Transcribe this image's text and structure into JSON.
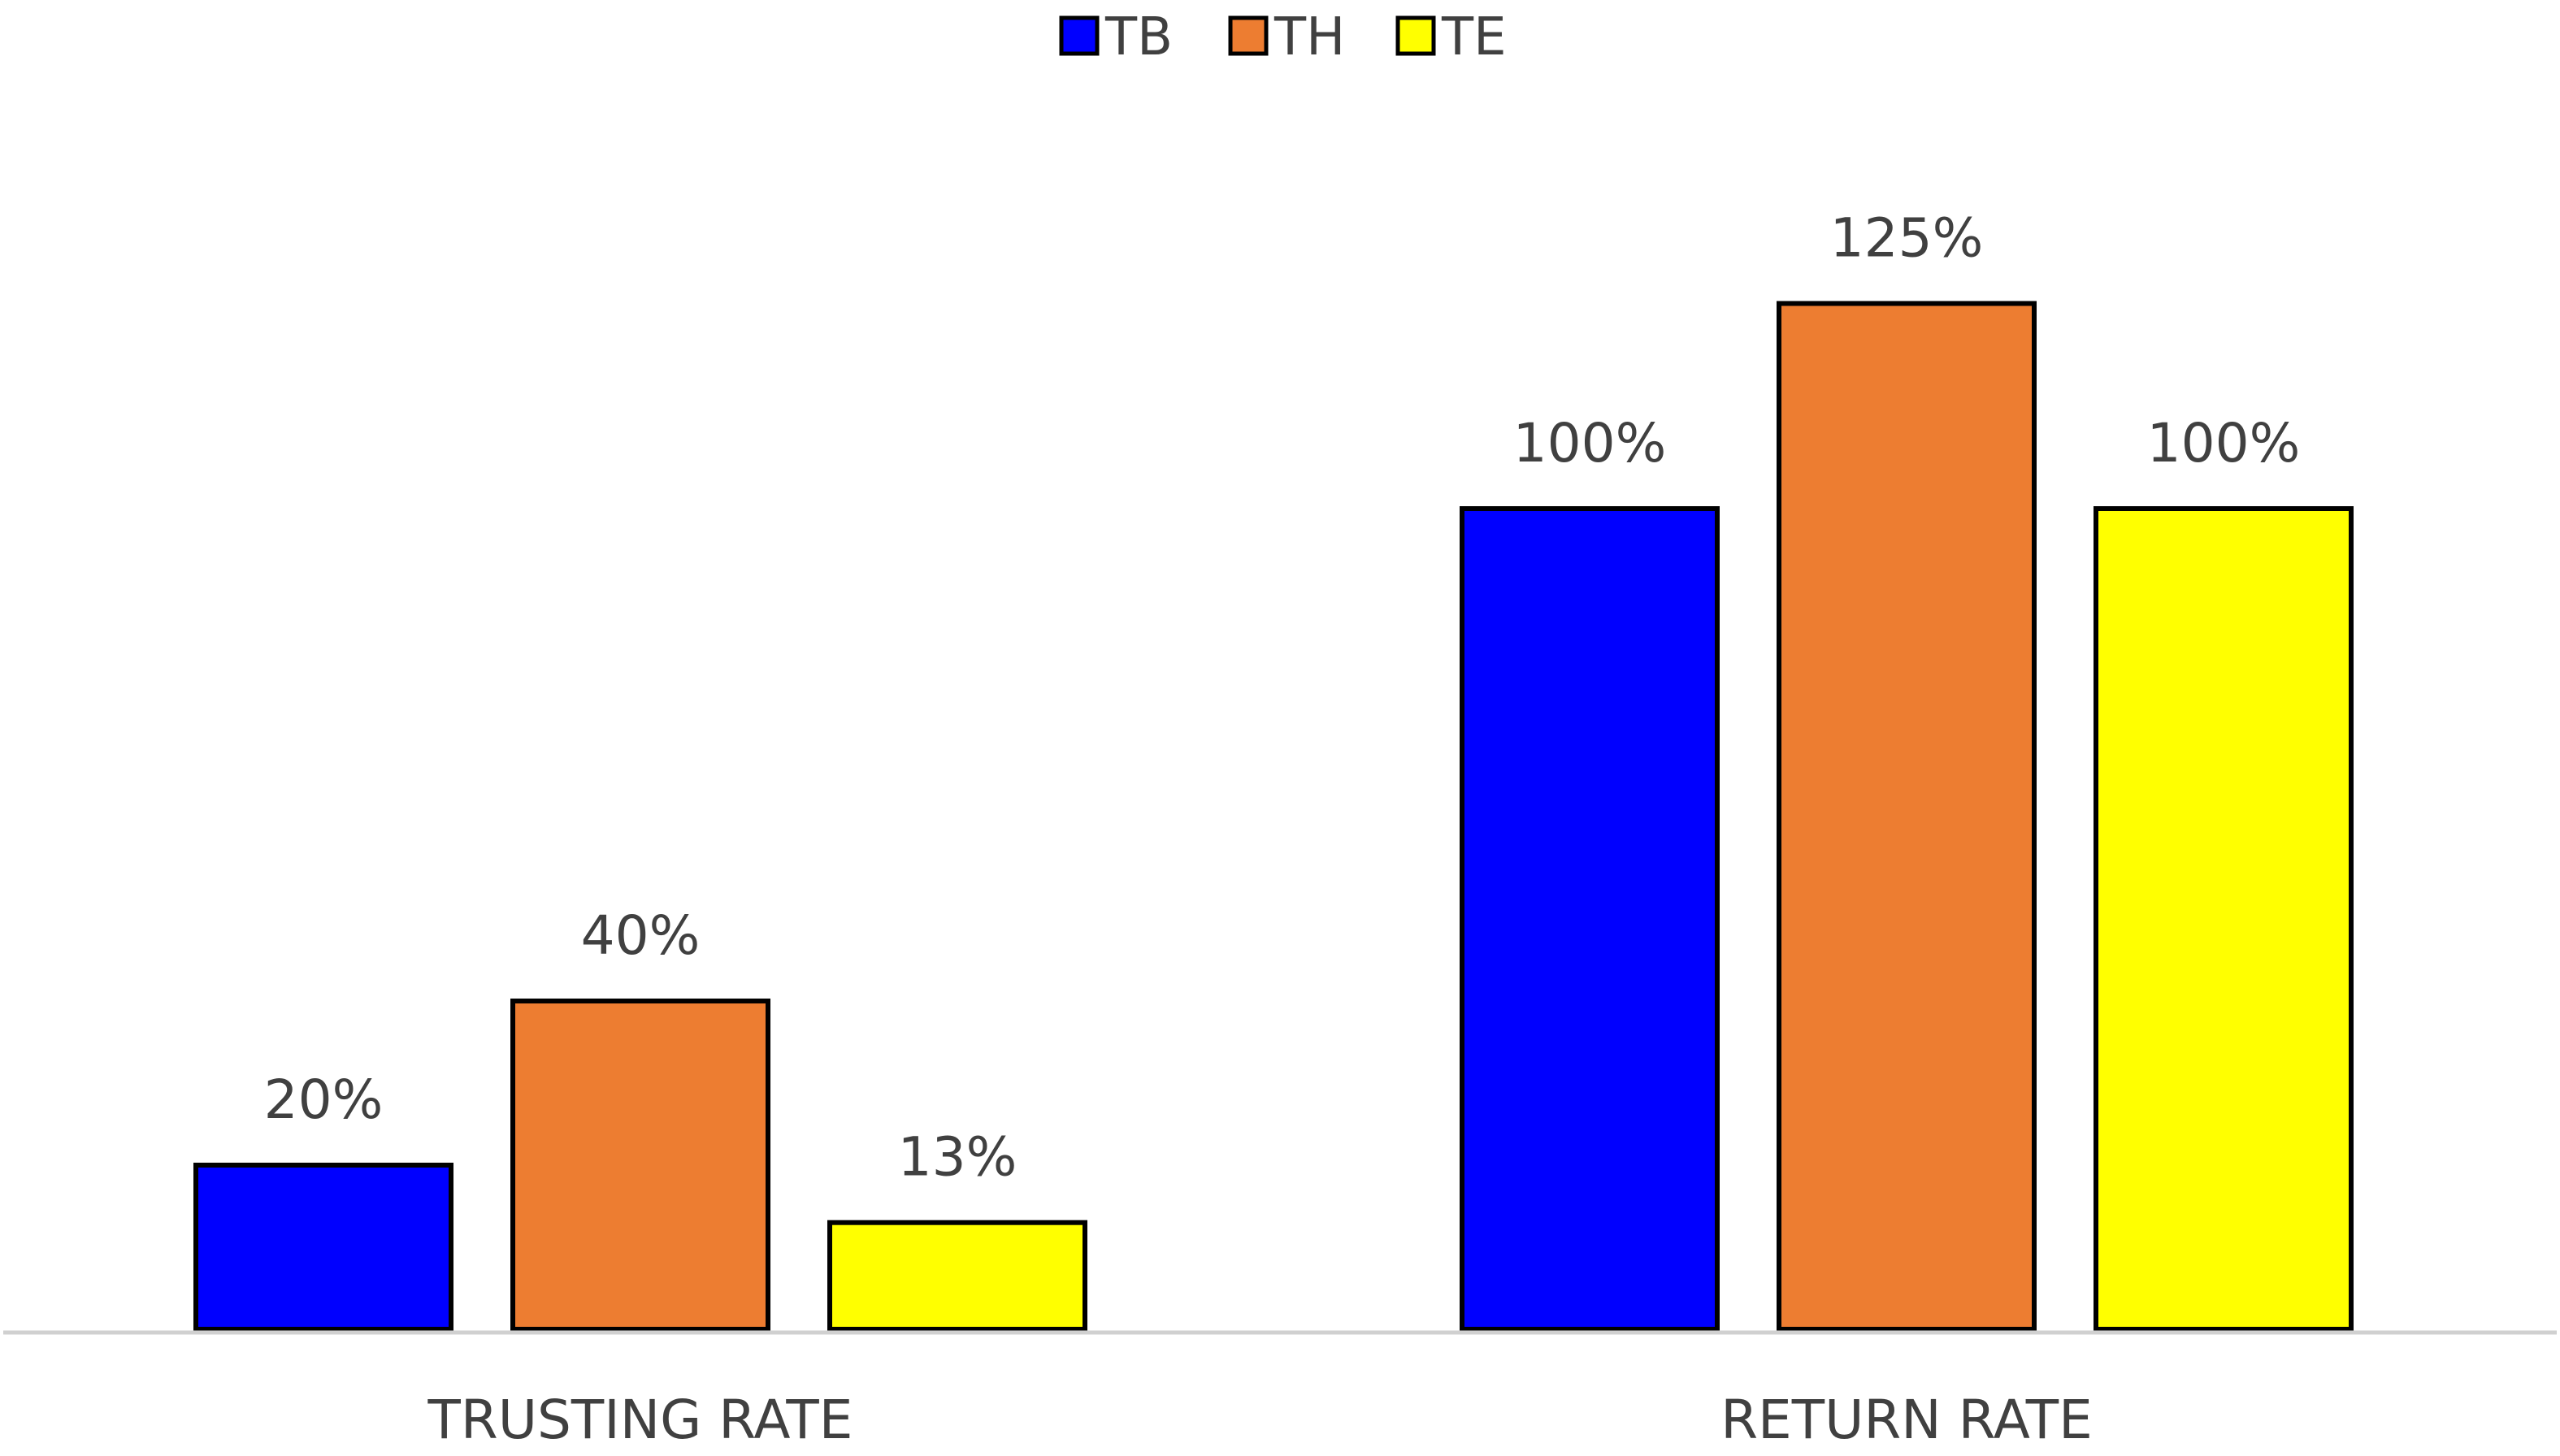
{
  "chart_data": {
    "type": "bar",
    "title": "",
    "xlabel": "",
    "ylabel": "",
    "categories": [
      "TRUSTING RATE",
      "RETURN RATE"
    ],
    "series": [
      {
        "name": "TB",
        "color": "#0000ff",
        "values": [
          20,
          100
        ],
        "labels": [
          "20%",
          "100%"
        ]
      },
      {
        "name": "TH",
        "color": "#ed7d31",
        "values": [
          40,
          125
        ],
        "labels": [
          "40%",
          "125%"
        ]
      },
      {
        "name": "TE",
        "color": "#ffff00",
        "values": [
          13,
          100
        ],
        "labels": [
          "13%",
          "100%"
        ]
      }
    ],
    "unit": "%",
    "ylim": [
      0,
      125
    ],
    "grid": false,
    "legend_position": "top-center",
    "axis_color": "#d0d0d0"
  }
}
